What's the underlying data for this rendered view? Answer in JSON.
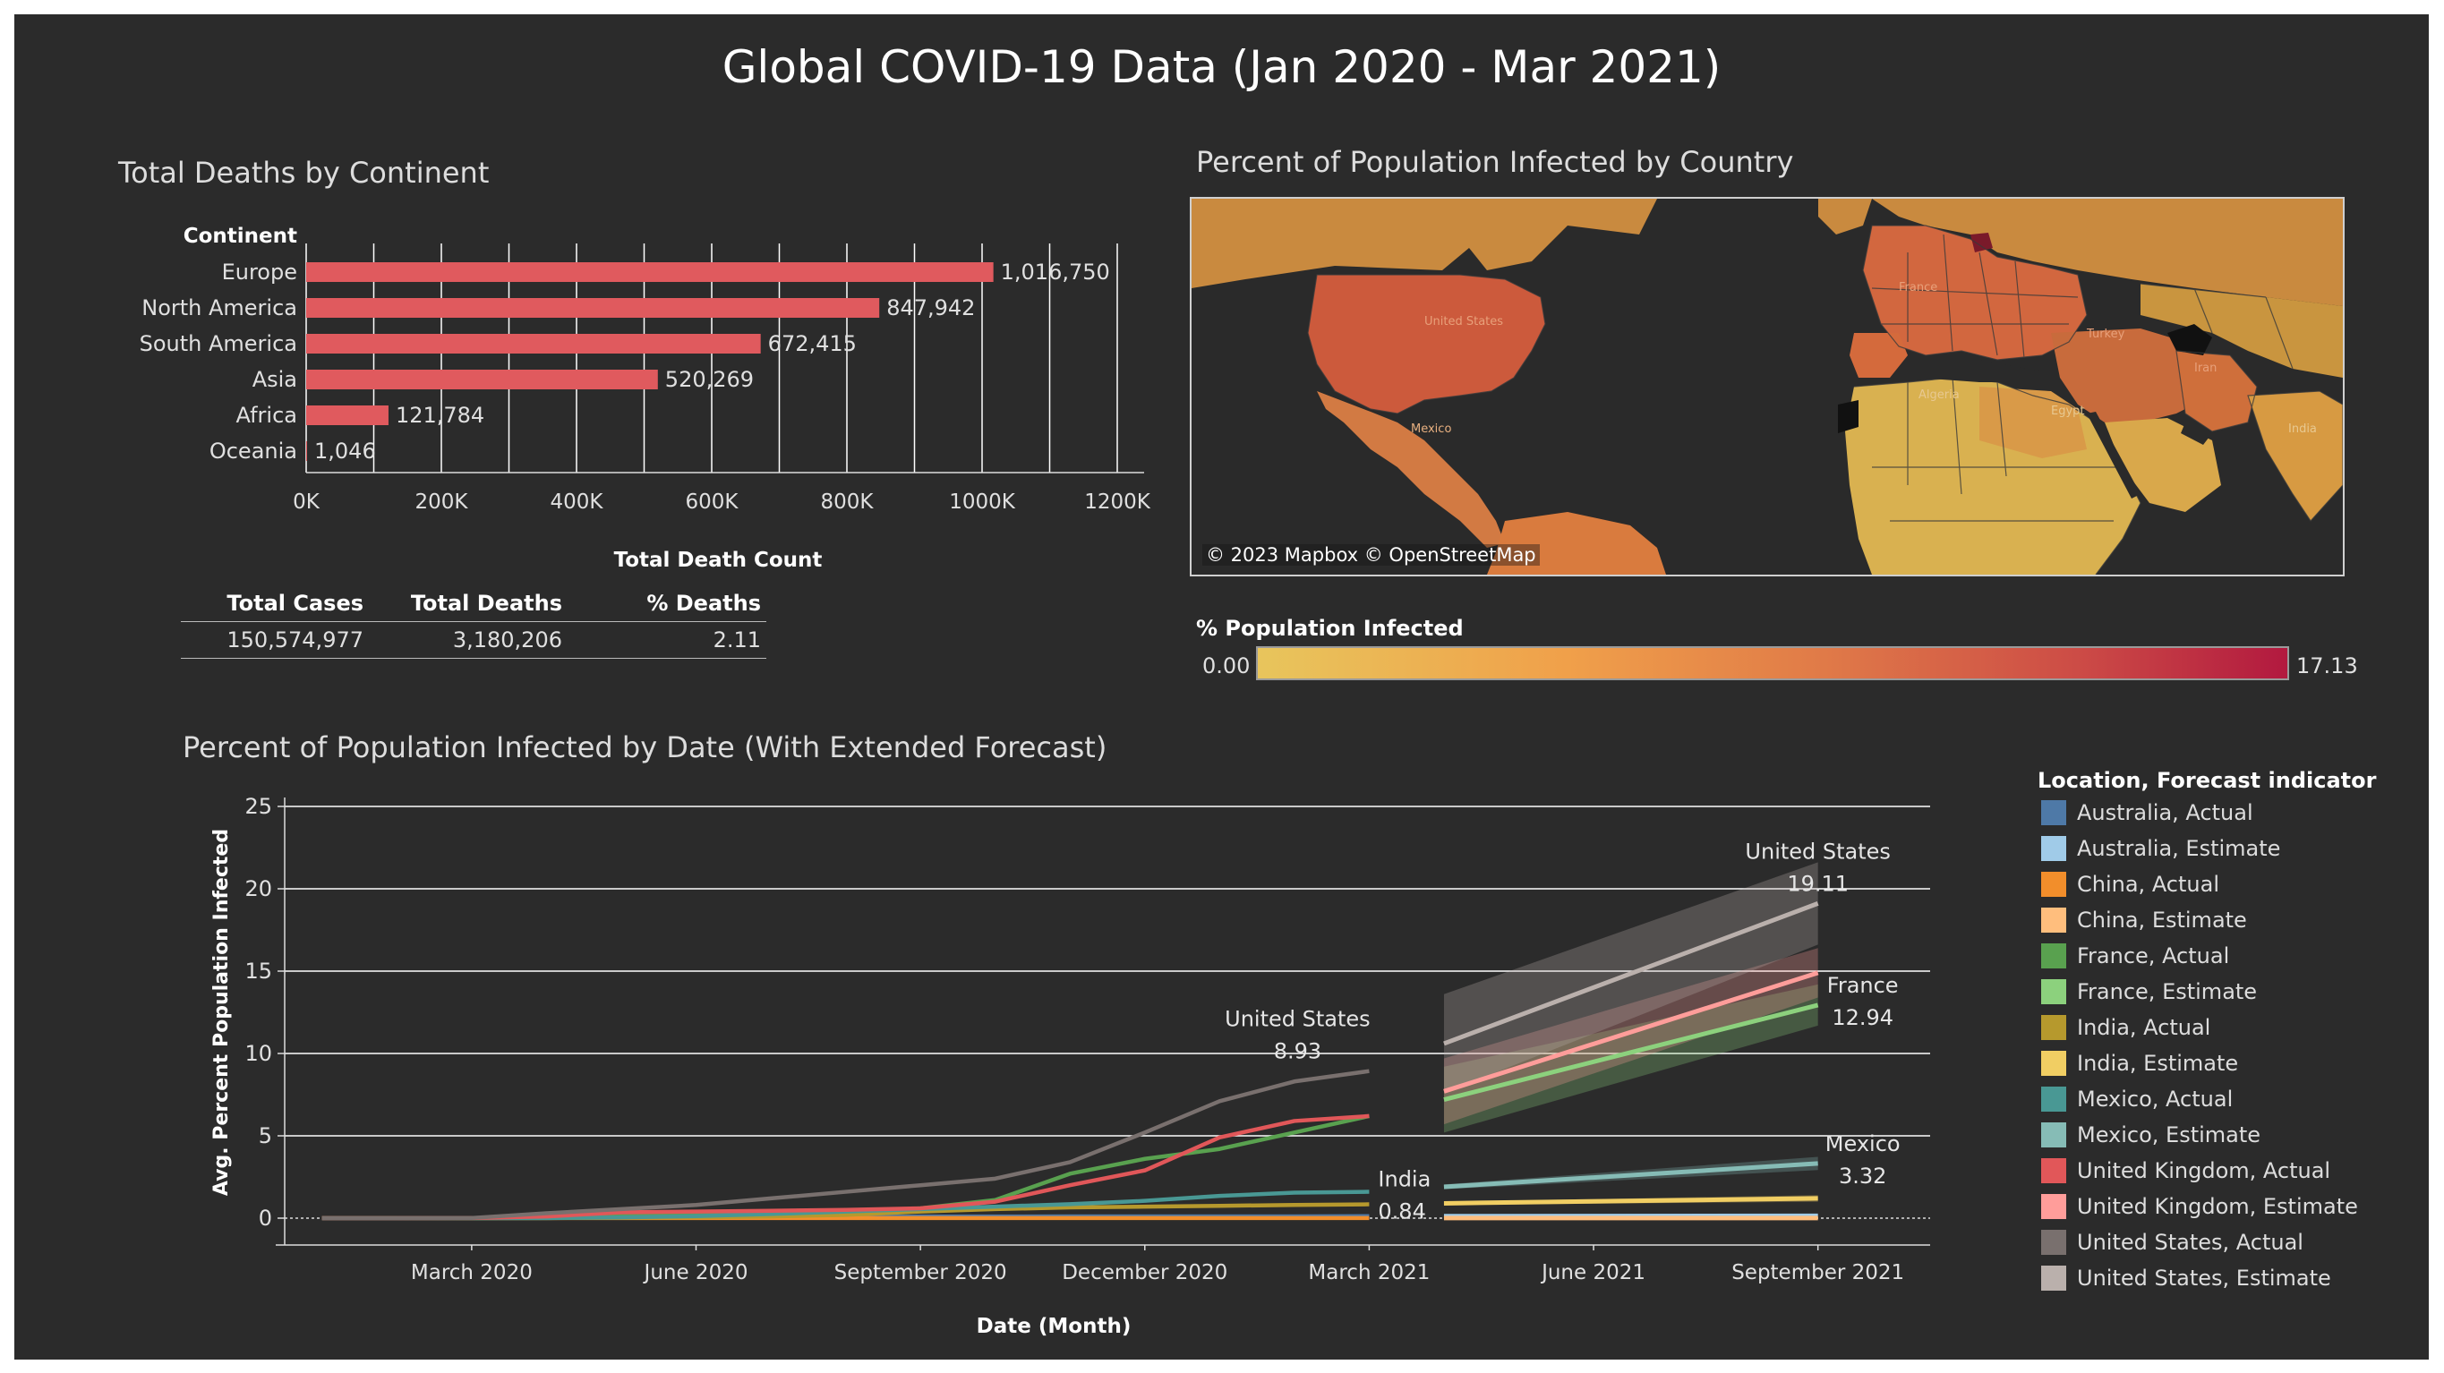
{
  "title": "Global COVID-19 Data (Jan 2020 - Mar 2021)",
  "bar_panel": {
    "title": "Total Deaths by Continent",
    "category_header": "Continent",
    "xlabel": "Total Death Count"
  },
  "summary": {
    "headers": [
      "Total Cases",
      "Total Deaths",
      "% Deaths"
    ],
    "values": [
      "150,574,977",
      "3,180,206",
      "2.11"
    ]
  },
  "map_panel": {
    "title": "Percent of Population Infected by Country",
    "attribution": "© 2023 Mapbox © OpenStreetMap",
    "country_labels": [
      "United States",
      "Mexico",
      "France",
      "Algeria",
      "Egypt",
      "Turkey",
      "Iran",
      "India"
    ],
    "legend_title": "% Population Infected",
    "legend_min": "0.00",
    "legend_max": "17.13",
    "colors": {
      "ocean": "#2a2a2a",
      "low": "#e8c55c",
      "high": "#b2193f"
    }
  },
  "line_panel": {
    "title": "Percent of Population Infected by Date (With Extended Forecast)",
    "legend_title": "Location, Forecast indicator"
  },
  "chart_data": [
    {
      "type": "bar",
      "title": "Total Deaths by Continent",
      "categories": [
        "Europe",
        "North America",
        "South America",
        "Asia",
        "Africa",
        "Oceania"
      ],
      "values": [
        1016750,
        847942,
        672415,
        520269,
        121784,
        1046
      ],
      "value_labels": [
        "1,016,750",
        "847,942",
        "672,415",
        "520,269",
        "121,784",
        "1,046"
      ],
      "xlabel": "Total Death Count",
      "xlim": [
        0,
        1200000
      ],
      "ticks": [
        0,
        200000,
        400000,
        600000,
        800000,
        1000000,
        1200000
      ],
      "tick_labels": [
        "0K",
        "200K",
        "400K",
        "600K",
        "800K",
        "1000K",
        "1200K"
      ],
      "gridlines": [
        0,
        100000,
        200000,
        300000,
        400000,
        500000,
        600000,
        700000,
        800000,
        900000,
        1000000,
        1100000,
        1200000
      ],
      "color": "#e05a5e",
      "grid": true
    },
    {
      "type": "line",
      "title": "Percent of Population Infected by Date (With Extended Forecast)",
      "xlabel": "Date (Month)",
      "ylabel": "Avg. Percent Population Infected",
      "ylim": [
        0,
        25
      ],
      "yticks": [
        0,
        5,
        10,
        15,
        20,
        25
      ],
      "xlim": [
        "2020-01",
        "2021-10"
      ],
      "xticks": [
        "2020-03",
        "2020-06",
        "2020-09",
        "2020-12",
        "2021-03",
        "2021-06",
        "2021-09"
      ],
      "xtick_labels": [
        "March 2020",
        "June 2020",
        "September 2020",
        "December 2020",
        "March 2021",
        "June 2021",
        "September 2021"
      ],
      "x_actual": [
        "2020-01",
        "2020-02",
        "2020-03",
        "2020-04",
        "2020-05",
        "2020-06",
        "2020-07",
        "2020-08",
        "2020-09",
        "2020-10",
        "2020-11",
        "2020-12",
        "2021-01",
        "2021-02",
        "2021-03"
      ],
      "x_forecast": [
        "2021-04",
        "2021-09"
      ],
      "series": [
        {
          "name": "Australia, Actual",
          "color": "#4e79a7",
          "values": [
            0,
            0,
            0,
            0.01,
            0.03,
            0.03,
            0.04,
            0.08,
            0.1,
            0.1,
            0.11,
            0.11,
            0.11,
            0.11,
            0.12
          ]
        },
        {
          "name": "Australia, Estimate",
          "color": "#a0cbe8",
          "values": [
            0.12,
            0.14
          ],
          "band": [
            0.1,
            0.2
          ]
        },
        {
          "name": "China, Actual",
          "color": "#f28e2b",
          "values": [
            0.01,
            0.01,
            0.01,
            0.01,
            0.01,
            0.01,
            0.01,
            0.01,
            0.01,
            0.01,
            0.01,
            0.01,
            0.01,
            0.01,
            0.01
          ]
        },
        {
          "name": "China, Estimate",
          "color": "#ffbe7d",
          "values": [
            0.01,
            0.01
          ],
          "band": [
            0.0,
            0.05
          ]
        },
        {
          "name": "France, Actual",
          "color": "#59a14f",
          "values": [
            0,
            0,
            0.01,
            0.05,
            0.15,
            0.2,
            0.25,
            0.35,
            0.6,
            1.1,
            2.7,
            3.6,
            4.2,
            5.2,
            6.2
          ]
        },
        {
          "name": "France, Estimate",
          "color": "#8cd17d",
          "values": [
            7.2,
            12.94
          ],
          "band": [
            4.0,
            2.5
          ]
        },
        {
          "name": "India, Actual",
          "color": "#b6992d",
          "values": [
            0,
            0,
            0,
            0.01,
            0.02,
            0.05,
            0.1,
            0.2,
            0.4,
            0.55,
            0.65,
            0.7,
            0.75,
            0.8,
            0.84
          ]
        },
        {
          "name": "India, Estimate",
          "color": "#f1ce63",
          "values": [
            0.9,
            1.2
          ],
          "band": [
            0.2,
            0.4
          ]
        },
        {
          "name": "Mexico, Actual",
          "color": "#499894",
          "values": [
            0,
            0,
            0,
            0.01,
            0.05,
            0.12,
            0.25,
            0.4,
            0.55,
            0.7,
            0.85,
            1.05,
            1.35,
            1.55,
            1.6
          ]
        },
        {
          "name": "Mexico, Estimate",
          "color": "#86bcb6",
          "values": [
            1.9,
            3.32
          ],
          "band": [
            0.3,
            0.8
          ]
        },
        {
          "name": "United Kingdom, Actual",
          "color": "#e15759",
          "values": [
            0,
            0,
            0.01,
            0.1,
            0.35,
            0.4,
            0.45,
            0.5,
            0.6,
            1.0,
            2.0,
            2.9,
            4.9,
            5.9,
            6.2
          ]
        },
        {
          "name": "United Kingdom, Estimate",
          "color": "#ff9d9a",
          "values": [
            7.7,
            14.9
          ],
          "band": [
            4.0,
            3.0
          ]
        },
        {
          "name": "United States, Actual",
          "color": "#79706e",
          "values": [
            0,
            0,
            0.01,
            0.3,
            0.55,
            0.8,
            1.2,
            1.6,
            2.0,
            2.4,
            3.4,
            5.2,
            7.1,
            8.3,
            8.93
          ]
        },
        {
          "name": "United States, Estimate",
          "color": "#bab0ac",
          "values": [
            10.6,
            19.11
          ],
          "band": [
            6.0,
            5.0
          ]
        }
      ],
      "annotations": [
        {
          "text": "United States",
          "value": "8.93",
          "x": "2021-03",
          "y": 8.93
        },
        {
          "text": "India",
          "value": "0.84",
          "x": "2021-03",
          "y": 0.84
        },
        {
          "text": "United States",
          "value": "19.11",
          "x": "2021-09",
          "y": 19.11
        },
        {
          "text": "France",
          "value": "12.94",
          "x": "2021-09",
          "y": 12.94
        },
        {
          "text": "Mexico",
          "value": "3.32",
          "x": "2021-09",
          "y": 3.32
        }
      ],
      "grid": true,
      "legend": "right"
    }
  ]
}
